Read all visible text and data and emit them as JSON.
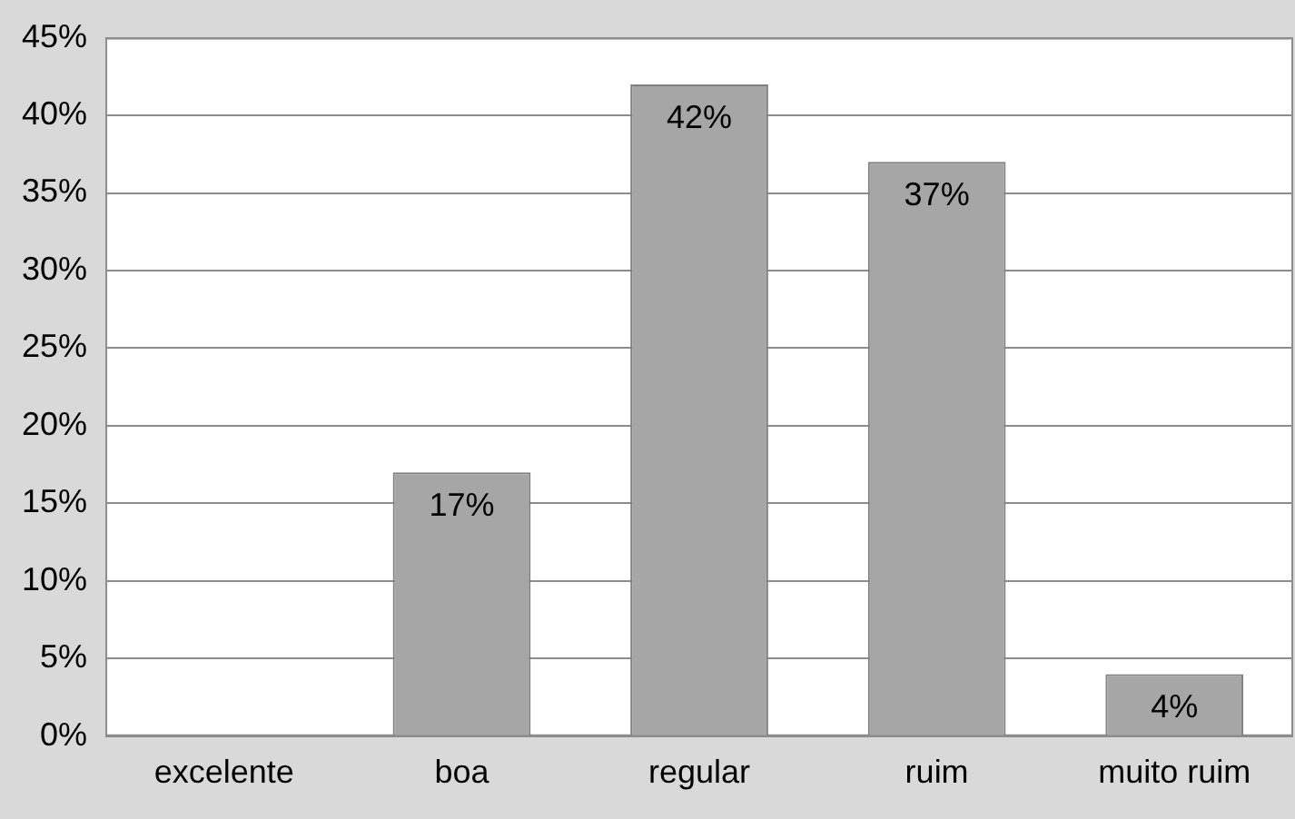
{
  "chart_data": {
    "type": "bar",
    "categories": [
      "excelente",
      "boa",
      "regular",
      "ruim",
      "muito ruim"
    ],
    "values": [
      0,
      17,
      42,
      37,
      4
    ],
    "value_labels": [
      null,
      "17%",
      "42%",
      "37%",
      "4%"
    ],
    "color": "#a6a6a6",
    "ylim": [
      0,
      45
    ],
    "yticks": [
      {
        "value": 0,
        "label": "0%"
      },
      {
        "value": 5,
        "label": "5%"
      },
      {
        "value": 10,
        "label": "10%"
      },
      {
        "value": 15,
        "label": "15%"
      },
      {
        "value": 20,
        "label": "20%"
      },
      {
        "value": 25,
        "label": "25%"
      },
      {
        "value": 30,
        "label": "30%"
      },
      {
        "value": 35,
        "label": "35%"
      },
      {
        "value": 40,
        "label": "40%"
      },
      {
        "value": 45,
        "label": "45%"
      }
    ],
    "grid": "y",
    "legend": false
  }
}
